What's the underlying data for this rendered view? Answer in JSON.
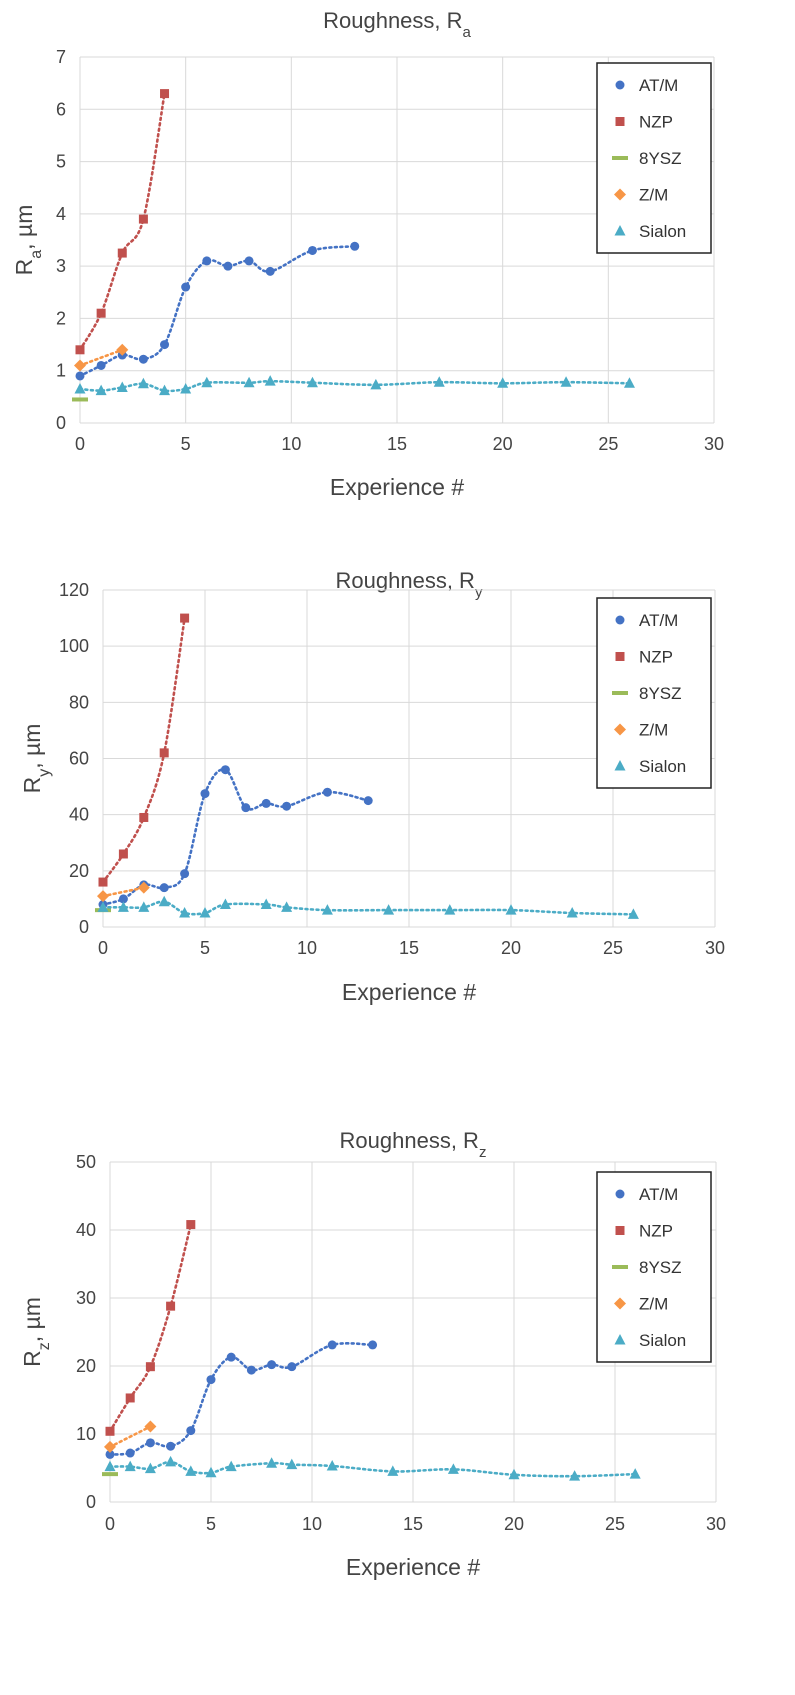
{
  "chart_data": [
    {
      "type": "scatter",
      "title": "Roughness, R",
      "title_sub": "a",
      "xlabel": "Experience  #",
      "ylabel": "R",
      "ylabel_sub": "a",
      "ylabel_unit": ", µm",
      "xlim": [
        0,
        30
      ],
      "ylim": [
        0,
        7
      ],
      "xticks": [
        0,
        5,
        10,
        15,
        20,
        25,
        30
      ],
      "yticks": [
        0,
        1,
        2,
        3,
        4,
        5,
        6,
        7
      ],
      "grid": true,
      "legend": "top-right",
      "series": [
        {
          "name": "AT/M",
          "marker": "circle",
          "color": "#4472C4",
          "trend": true,
          "x": [
            0,
            1,
            2,
            3,
            4,
            5,
            6,
            7,
            8,
            9,
            11,
            13
          ],
          "y": [
            0.9,
            1.1,
            1.3,
            1.22,
            1.5,
            2.6,
            3.1,
            3.0,
            3.1,
            2.9,
            3.3,
            3.38
          ]
        },
        {
          "name": "NZP",
          "marker": "square",
          "color": "#C0504D",
          "trend": true,
          "x": [
            0,
            1,
            2,
            3,
            4
          ],
          "y": [
            1.4,
            2.1,
            3.25,
            3.9,
            6.3
          ]
        },
        {
          "name": "8YSZ",
          "marker": "dash",
          "color": "#9BBB59",
          "trend": false,
          "x": [
            0
          ],
          "y": [
            0.45
          ]
        },
        {
          "name": "Z/M",
          "marker": "diamond",
          "color": "#F79646",
          "trend": true,
          "x": [
            0,
            2
          ],
          "y": [
            1.1,
            1.4
          ]
        },
        {
          "name": "Sialon",
          "marker": "triangle",
          "color": "#4BACC6",
          "trend": true,
          "x": [
            0,
            1,
            2,
            3,
            4,
            5,
            6,
            8,
            9,
            11,
            14,
            17,
            20,
            23,
            26
          ],
          "y": [
            0.65,
            0.62,
            0.68,
            0.75,
            0.62,
            0.65,
            0.77,
            0.77,
            0.8,
            0.77,
            0.73,
            0.78,
            0.76,
            0.78,
            0.76
          ]
        }
      ]
    },
    {
      "type": "scatter",
      "title": "Roughness, R",
      "title_sub": "y",
      "xlabel": "Experience  #",
      "ylabel": "R",
      "ylabel_sub": "y",
      "ylabel_unit": ", µm",
      "xlim": [
        0,
        30
      ],
      "ylim": [
        0,
        120
      ],
      "xticks": [
        0,
        5,
        10,
        15,
        20,
        25,
        30
      ],
      "yticks": [
        0,
        20,
        40,
        60,
        80,
        100,
        120
      ],
      "grid": true,
      "legend": "top-right",
      "series": [
        {
          "name": "AT/M",
          "marker": "circle",
          "color": "#4472C4",
          "trend": true,
          "x": [
            0,
            1,
            2,
            3,
            4,
            5,
            6,
            7,
            8,
            9,
            11,
            13
          ],
          "y": [
            8,
            10,
            15,
            14,
            19,
            47.5,
            56,
            42.5,
            44,
            43,
            48,
            45
          ]
        },
        {
          "name": "NZP",
          "marker": "square",
          "color": "#C0504D",
          "trend": true,
          "x": [
            0,
            1,
            2,
            3,
            4
          ],
          "y": [
            16,
            26,
            39,
            62,
            110
          ]
        },
        {
          "name": "8YSZ",
          "marker": "dash",
          "color": "#9BBB59",
          "trend": false,
          "x": [
            0
          ],
          "y": [
            6
          ]
        },
        {
          "name": "Z/M",
          "marker": "diamond",
          "color": "#F79646",
          "trend": true,
          "x": [
            0,
            2
          ],
          "y": [
            11,
            14
          ]
        },
        {
          "name": "Sialon",
          "marker": "triangle",
          "color": "#4BACC6",
          "trend": true,
          "x": [
            0,
            1,
            2,
            3,
            4,
            5,
            6,
            8,
            9,
            11,
            14,
            17,
            20,
            23,
            26
          ],
          "y": [
            7,
            7,
            7,
            9,
            5,
            5,
            8,
            8,
            7,
            6,
            6,
            6,
            6,
            5,
            4.5
          ]
        }
      ]
    },
    {
      "type": "scatter",
      "title": "Roughness, R",
      "title_sub": "z",
      "xlabel": "Experience  #",
      "ylabel": "R",
      "ylabel_sub": "z",
      "ylabel_unit": ", µm",
      "xlim": [
        0,
        30
      ],
      "ylim": [
        0,
        50
      ],
      "xticks": [
        0,
        5,
        10,
        15,
        20,
        25,
        30
      ],
      "yticks": [
        0,
        10,
        20,
        30,
        40,
        50
      ],
      "grid": true,
      "legend": "top-right",
      "series": [
        {
          "name": "AT/M",
          "marker": "circle",
          "color": "#4472C4",
          "trend": true,
          "x": [
            0,
            1,
            2,
            3,
            4,
            5,
            6,
            7,
            8,
            9,
            11,
            13
          ],
          "y": [
            7,
            7.2,
            8.7,
            8.2,
            10.5,
            18,
            21.3,
            19.4,
            20.2,
            19.9,
            23.1,
            23.1
          ]
        },
        {
          "name": "NZP",
          "marker": "square",
          "color": "#C0504D",
          "trend": true,
          "x": [
            0,
            1,
            2,
            3,
            4
          ],
          "y": [
            10.4,
            15.3,
            19.9,
            28.8,
            40.8
          ]
        },
        {
          "name": "8YSZ",
          "marker": "dash",
          "color": "#9BBB59",
          "trend": false,
          "x": [
            0
          ],
          "y": [
            4.1
          ]
        },
        {
          "name": "Z/M",
          "marker": "diamond",
          "color": "#F79646",
          "trend": true,
          "x": [
            0,
            2
          ],
          "y": [
            8.1,
            11.1
          ]
        },
        {
          "name": "Sialon",
          "marker": "triangle",
          "color": "#4BACC6",
          "trend": true,
          "x": [
            0,
            1,
            2,
            3,
            4,
            5,
            6,
            8,
            9,
            11,
            14,
            17,
            20,
            23,
            26
          ],
          "y": [
            5.2,
            5.2,
            4.9,
            5.9,
            4.5,
            4.3,
            5.2,
            5.7,
            5.5,
            5.3,
            4.5,
            4.8,
            4,
            3.8,
            4.1
          ]
        }
      ]
    }
  ]
}
